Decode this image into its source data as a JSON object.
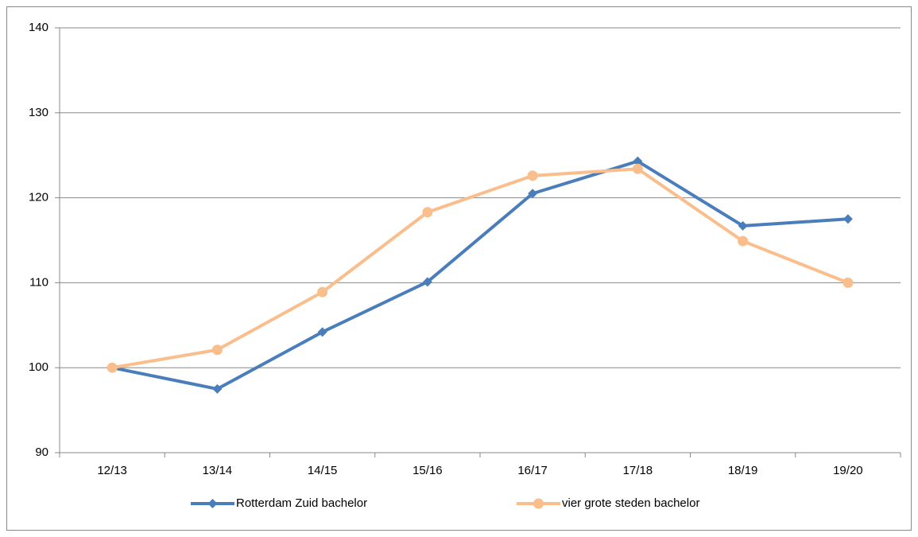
{
  "chart_data": {
    "type": "line",
    "categories": [
      "12/13",
      "13/14",
      "14/15",
      "15/16",
      "16/17",
      "17/18",
      "18/19",
      "19/20"
    ],
    "series": [
      {
        "name": "Rotterdam Zuid bachelor",
        "color": "#4a7ebb",
        "marker": "diamond",
        "values": [
          100,
          97.5,
          104.2,
          110.1,
          120.5,
          124.3,
          116.7,
          117.5
        ]
      },
      {
        "name": "vier grote steden bachelor",
        "color": "#f9be8c",
        "marker": "circle",
        "values": [
          100,
          102.1,
          108.9,
          118.3,
          122.6,
          123.4,
          114.9,
          110
        ]
      }
    ],
    "ylim": [
      90,
      140
    ],
    "yticks": [
      90,
      100,
      110,
      120,
      130,
      140
    ],
    "grid": true,
    "legend": "bottom"
  }
}
